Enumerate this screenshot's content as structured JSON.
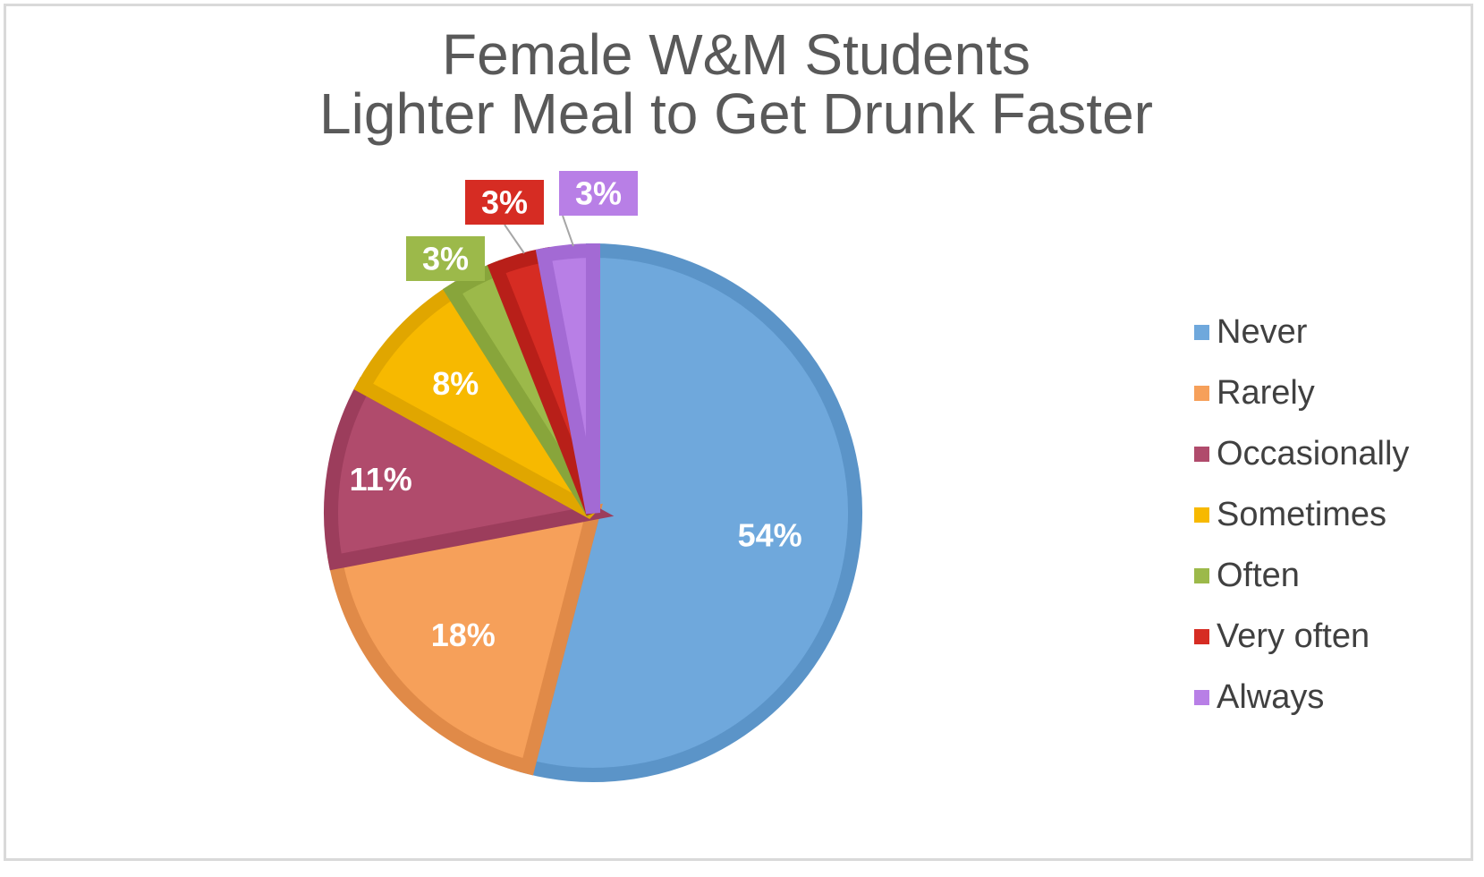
{
  "chart_data": {
    "type": "pie",
    "title": [
      "Female W&M Students",
      "Lighter Meal to Get Drunk Faster"
    ],
    "categories": [
      "Never",
      "Rarely",
      "Occasionally",
      "Sometimes",
      "Often",
      "Very often",
      "Always"
    ],
    "values": [
      54,
      18,
      11,
      8,
      3,
      3,
      3
    ],
    "data_labels": [
      "54%",
      "18%",
      "11%",
      "8%",
      "3%",
      "3%",
      "3%"
    ],
    "colors": [
      "#6fa8dc",
      "#f6a05a",
      "#b04b6c",
      "#f7b900",
      "#9cb94a",
      "#d62c23",
      "#b87fe6"
    ],
    "border_colors": [
      "#5b94c8",
      "#e08a48",
      "#9c3d5c",
      "#e0a600",
      "#88a53b",
      "#b81f19",
      "#a36ad4"
    ],
    "legend_position": "right"
  }
}
